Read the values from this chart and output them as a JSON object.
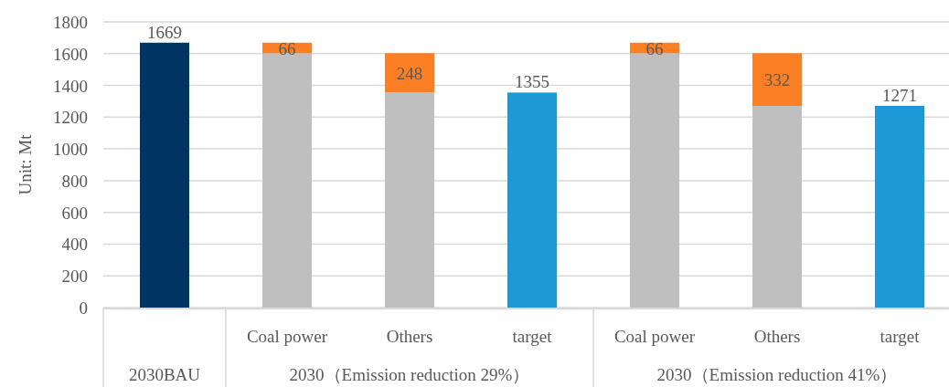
{
  "chart_data": {
    "type": "bar",
    "stacked": true,
    "ylabel": "Unit: Mt",
    "categories": [
      null,
      "Coal power",
      "Others",
      "target",
      "Coal power",
      "Others",
      "target"
    ],
    "series": [
      {
        "colors": [
          "#003462",
          "#bfbfbf",
          "#bfbfbf",
          "#1b9ad6",
          "#bfbfbf",
          "#bfbfbf",
          "#1b9ad6"
        ],
        "values": [
          1669,
          1603,
          1355,
          1355,
          1603,
          1271,
          1271
        ],
        "value_labels": [
          "1669",
          null,
          null,
          "1355",
          null,
          null,
          "1271"
        ]
      },
      {
        "color": "#fd7f23",
        "values": [
          null,
          66,
          248,
          null,
          66,
          332,
          null
        ],
        "value_labels": [
          null,
          "66",
          "248",
          null,
          "66",
          "332",
          null
        ]
      }
    ],
    "ylim": [
      0,
      1800
    ],
    "yticks": [
      0,
      200,
      400,
      600,
      800,
      1000,
      1200,
      1400,
      1600,
      1800
    ],
    "grid": "y",
    "annotations": [
      "2030BAU",
      "2030（Emission reduction 29%）",
      "2030（Emission reduction 41%）"
    ]
  }
}
